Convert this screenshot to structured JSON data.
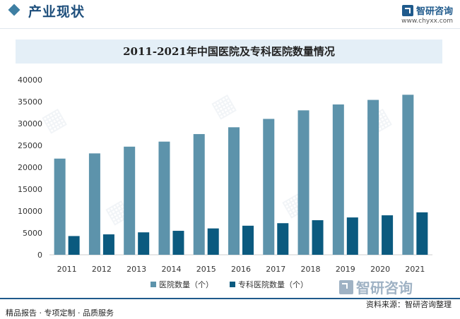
{
  "header": {
    "section_title": "产业现状",
    "brand_name": "智研咨询",
    "brand_url": "www.chyxx.com"
  },
  "chart_data": {
    "type": "bar",
    "title": "2011-2021年中国医院及专科医院数量情况",
    "categories": [
      "2011",
      "2012",
      "2013",
      "2014",
      "2015",
      "2016",
      "2017",
      "2018",
      "2019",
      "2020",
      "2021"
    ],
    "series": [
      {
        "name": "医院数量（个）",
        "color": "#5d93ab",
        "values": [
          21979,
          23170,
          24709,
          25860,
          27587,
          29140,
          31056,
          33009,
          34354,
          35394,
          36570
        ]
      },
      {
        "name": "专科医院数量（个）",
        "color": "#0b5a7f",
        "values": [
          4283,
          4665,
          5127,
          5478,
          6023,
          6642,
          7220,
          7900,
          8531,
          9021,
          9699
        ]
      }
    ],
    "ylim": [
      0,
      40000
    ],
    "yticks": [
      0,
      5000,
      10000,
      15000,
      20000,
      25000,
      30000,
      35000,
      40000
    ],
    "legend_position": "bottom",
    "grid": false
  },
  "footer": {
    "logo_text": "智研咨询",
    "left_text": "精品报告 · 专项定制 · 品质服务",
    "source_text": "资料来源：智研咨询整理"
  }
}
